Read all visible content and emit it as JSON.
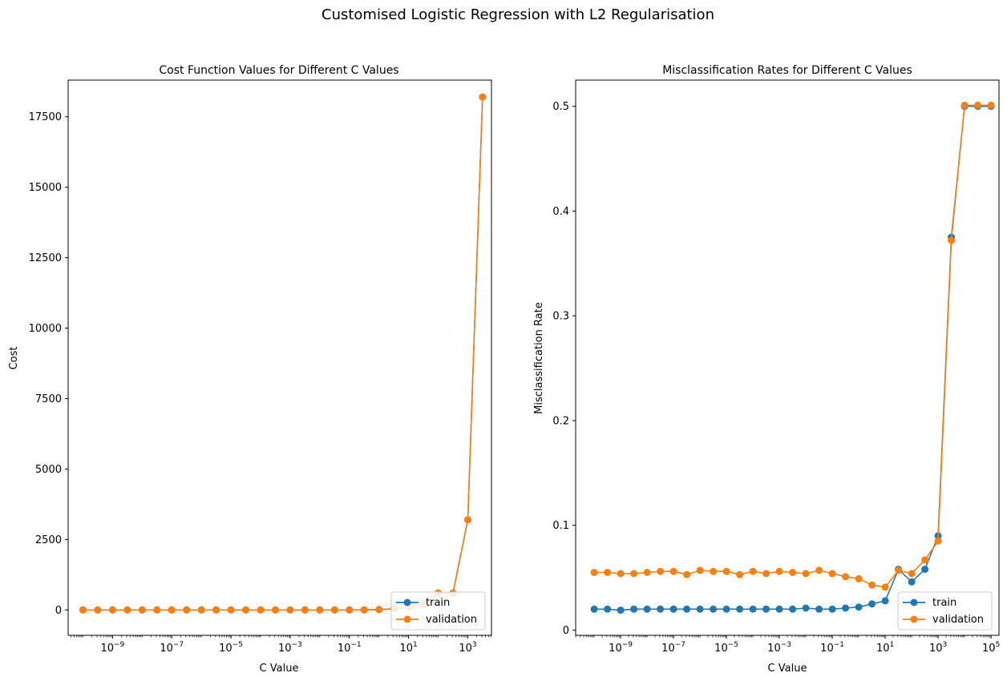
{
  "figure": {
    "suptitle": "Customised Logistic Regression with L2 Regularisation"
  },
  "chart_data": [
    {
      "type": "line",
      "title": "Cost Function Values for Different C Values",
      "xlabel": "C Value",
      "ylabel": "Cost",
      "xscale": "log",
      "xlim_exp": [
        -10.5,
        3.8
      ],
      "ylim": [
        -900,
        18800
      ],
      "x_tick_exponents": [
        -9,
        -7,
        -5,
        -3,
        -1,
        1,
        3
      ],
      "y_ticks": [
        0,
        2500,
        5000,
        7500,
        10000,
        12500,
        15000,
        17500
      ],
      "legend": "lower right",
      "grid": false,
      "x_exponents": [
        -10,
        -9.5,
        -9,
        -8.5,
        -8,
        -7.5,
        -7,
        -6.5,
        -6,
        -5.5,
        -5,
        -4.5,
        -4,
        -3.5,
        -3,
        -2.5,
        -2,
        -1.5,
        -1,
        -0.5,
        0,
        0.5,
        1,
        1.5,
        2,
        2.5,
        3,
        3.5
      ],
      "series": [
        {
          "name": "train",
          "color": "#1f77b4",
          "values": [
            0,
            0,
            0,
            0,
            0,
            0,
            0,
            0,
            0,
            0,
            0,
            0,
            0,
            0,
            0,
            0,
            0,
            0,
            0,
            5,
            15,
            40,
            100,
            200,
            600,
            600,
            3200,
            18200
          ]
        },
        {
          "name": "validation",
          "color": "#ff7f0e",
          "values": [
            0,
            0,
            0,
            0,
            0,
            0,
            0,
            0,
            0,
            0,
            0,
            0,
            0,
            0,
            0,
            0,
            0,
            0,
            0,
            5,
            15,
            40,
            100,
            200,
            600,
            600,
            3200,
            18200
          ]
        }
      ]
    },
    {
      "type": "line",
      "title": "Misclassification Rates for Different C Values",
      "xlabel": "C Value",
      "ylabel": "Misclassification Rate",
      "xscale": "log",
      "xlim_exp": [
        -10.7,
        5.3
      ],
      "ylim": [
        -0.005,
        0.525
      ],
      "x_tick_exponents": [
        -9,
        -7,
        -5,
        -3,
        -1,
        1,
        3,
        5
      ],
      "y_ticks": [
        0.0,
        0.1,
        0.2,
        0.3,
        0.4,
        0.5
      ],
      "legend": "lower right",
      "grid": false,
      "x_exponents": [
        -10,
        -9.5,
        -9,
        -8.5,
        -8,
        -7.5,
        -7,
        -6.5,
        -6,
        -5.5,
        -5,
        -4.5,
        -4,
        -3.5,
        -3,
        -2.5,
        -2,
        -1.5,
        -1,
        -0.5,
        0,
        0.5,
        1,
        1.5,
        2,
        2.5,
        3,
        3.5,
        4,
        4.5,
        5
      ],
      "series": [
        {
          "name": "train",
          "color": "#1f77b4",
          "values": [
            0.02,
            0.02,
            0.019,
            0.02,
            0.02,
            0.02,
            0.02,
            0.02,
            0.02,
            0.02,
            0.02,
            0.02,
            0.02,
            0.02,
            0.02,
            0.02,
            0.021,
            0.02,
            0.02,
            0.021,
            0.022,
            0.025,
            0.028,
            0.058,
            0.046,
            0.058,
            0.09,
            0.375,
            0.5,
            0.5,
            0.5
          ]
        },
        {
          "name": "validation",
          "color": "#ff7f0e",
          "values": [
            0.055,
            0.055,
            0.054,
            0.054,
            0.055,
            0.056,
            0.056,
            0.053,
            0.057,
            0.056,
            0.056,
            0.053,
            0.056,
            0.054,
            0.056,
            0.055,
            0.054,
            0.057,
            0.054,
            0.051,
            0.049,
            0.043,
            0.041,
            0.057,
            0.054,
            0.067,
            0.085,
            0.372,
            0.501,
            0.501,
            0.501
          ]
        }
      ]
    }
  ]
}
